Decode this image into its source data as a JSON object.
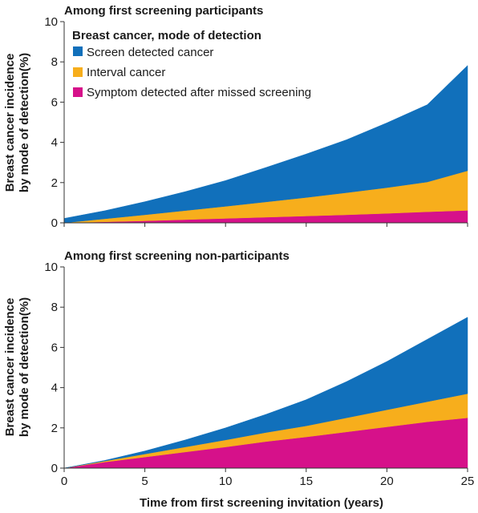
{
  "figure": {
    "xlabel": "Time from first screening invitation (years)",
    "ylabel_line1": "Breast cancer incidence",
    "ylabel_line2": "by mode of detection(%)"
  },
  "legend": {
    "title": "Breast cancer, mode of detection",
    "placement": "top-left of upper panel",
    "items": [
      {
        "label": "Screen detected cancer",
        "color": "#1170BB"
      },
      {
        "label": "Interval cancer",
        "color": "#F7AE1C"
      },
      {
        "label": "Symptom detected after missed screening",
        "color": "#D6118A"
      }
    ]
  },
  "chart_data": [
    {
      "type": "area",
      "stacked": true,
      "title": "Among first screening participants",
      "xlabel": "Time from first screening invitation (years)",
      "ylabel": "Breast cancer incidence by mode of detection(%)",
      "xlim": [
        0,
        25
      ],
      "ylim": [
        0,
        10
      ],
      "xticks": [
        "0",
        "5",
        "10",
        "15",
        "20",
        "25"
      ],
      "yticks": [
        "0",
        "2",
        "4",
        "6",
        "8",
        "10"
      ],
      "grid": false,
      "x": [
        0,
        2.5,
        5,
        7.5,
        10,
        12.5,
        15,
        17.5,
        20,
        22.5,
        25
      ],
      "series": [
        {
          "name": "Symptom detected after missed screening",
          "color": "#D6118A",
          "values": [
            0,
            0.05,
            0.1,
            0.16,
            0.22,
            0.28,
            0.34,
            0.4,
            0.47,
            0.55,
            0.62
          ]
        },
        {
          "name": "Interval cancer",
          "color": "#F7AE1C",
          "values": [
            0,
            0.15,
            0.3,
            0.45,
            0.6,
            0.76,
            0.92,
            1.1,
            1.28,
            1.48,
            1.97
          ]
        },
        {
          "name": "Screen detected cancer",
          "color": "#1170BB",
          "values": [
            0.22,
            0.4,
            0.65,
            0.94,
            1.28,
            1.71,
            2.16,
            2.63,
            3.22,
            3.84,
            5.23
          ]
        }
      ]
    },
    {
      "type": "area",
      "stacked": true,
      "title": "Among first screening non-participants",
      "xlabel": "Time from first screening invitation (years)",
      "ylabel": "Breast cancer incidence by mode of detection(%)",
      "xlim": [
        0,
        25
      ],
      "ylim": [
        0,
        10
      ],
      "xticks": [
        "0",
        "5",
        "10",
        "15",
        "20",
        "25"
      ],
      "yticks": [
        "0",
        "2",
        "4",
        "6",
        "8",
        "10"
      ],
      "grid": false,
      "x": [
        0,
        2.5,
        5,
        7.5,
        10,
        12.5,
        15,
        17.5,
        20,
        22.5,
        25
      ],
      "series": [
        {
          "name": "Symptom detected after missed screening",
          "color": "#D6118A",
          "values": [
            0,
            0.3,
            0.55,
            0.8,
            1.05,
            1.32,
            1.55,
            1.8,
            2.05,
            2.3,
            2.5
          ]
        },
        {
          "name": "Interval cancer",
          "color": "#F7AE1C",
          "values": [
            0,
            0.05,
            0.15,
            0.25,
            0.35,
            0.45,
            0.55,
            0.7,
            0.85,
            1.0,
            1.2
          ]
        },
        {
          "name": "Screen detected cancer",
          "color": "#1170BB",
          "values": [
            0,
            0.03,
            0.15,
            0.35,
            0.6,
            0.9,
            1.3,
            1.8,
            2.4,
            3.1,
            3.8
          ]
        }
      ]
    }
  ]
}
